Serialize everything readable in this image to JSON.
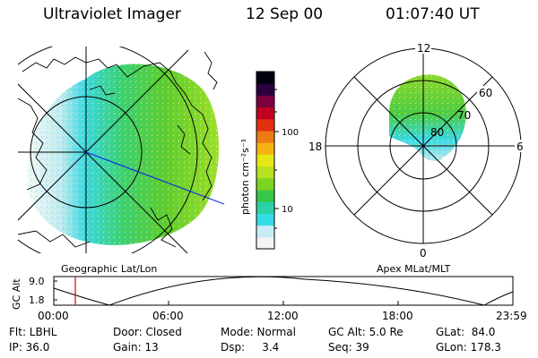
{
  "header": {
    "instrument": "Ultraviolet Imager",
    "date": "12 Sep 00",
    "time": "01:07:40 UT"
  },
  "left_panel": {
    "caption": "Geographic Lat/Lon"
  },
  "right_panel": {
    "caption": "Apex MLat/MLT",
    "mlt_labels": {
      "top": "12",
      "left": "18",
      "right": "6",
      "bottom": "0"
    },
    "lat_labels": [
      "60",
      "70",
      "80"
    ]
  },
  "colorbar": {
    "unit": "photon cm⁻²s⁻¹",
    "ticks": [
      "100",
      "10"
    ],
    "colors": [
      "#f4f4f4",
      "#c8ecf4",
      "#34dce6",
      "#2bd2a6",
      "#35c846",
      "#7ad420",
      "#b8e020",
      "#e6e814",
      "#f6b214",
      "#ee7a14",
      "#e03010",
      "#c00020",
      "#7a0040",
      "#2a0040",
      "#000010"
    ]
  },
  "timeline": {
    "ylabel": "GC Alt",
    "y_ticks": [
      "9.0",
      "1.8"
    ],
    "x_ticks": [
      "00:00",
      "06:00",
      "12:00",
      "18:00",
      "23:59"
    ],
    "marker_color": "#e01010"
  },
  "footer": {
    "row1": [
      "Flt: LBHL",
      "Door: Closed",
      "Mode: Normal",
      "GC Alt: 5.0 Re",
      "GLat:  84.0"
    ],
    "row2": [
      "IP: 36.0",
      "Gain: 13",
      "Dsp:     3.4",
      "Seq: 39",
      "GLon: 178.3"
    ]
  }
}
